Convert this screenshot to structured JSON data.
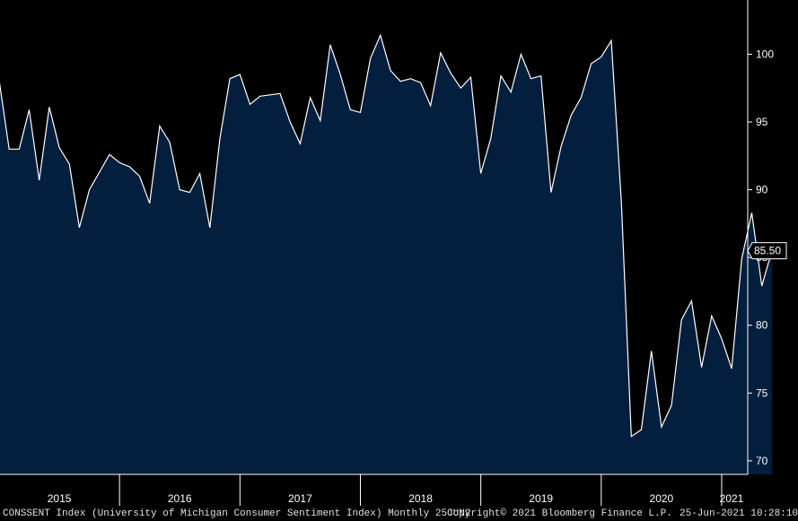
{
  "chart_data": {
    "type": "area",
    "title": "",
    "xlabel": "",
    "ylabel": "",
    "ylim": [
      69,
      104
    ],
    "yticks": [
      70,
      75,
      80,
      85,
      90,
      95,
      100
    ],
    "year_labels": [
      "2015",
      "2016",
      "2017",
      "2018",
      "2019",
      "2020",
      "2021"
    ],
    "last_value_label": "85.50",
    "grid": false,
    "colors": {
      "fill": "#041e3d",
      "line": "#ffffff",
      "background": "#000000",
      "axis": "#ffffff"
    },
    "series": [
      {
        "x": [
          "2015-01",
          "2015-02",
          "2015-03",
          "2015-04",
          "2015-05",
          "2015-06",
          "2015-07",
          "2015-08",
          "2015-09",
          "2015-10",
          "2015-11",
          "2015-12",
          "2016-01",
          "2016-02",
          "2016-03",
          "2016-04",
          "2016-05",
          "2016-06",
          "2016-07",
          "2016-08",
          "2016-09",
          "2016-10",
          "2016-11",
          "2016-12",
          "2017-01",
          "2017-02",
          "2017-03",
          "2017-04",
          "2017-05",
          "2017-06",
          "2017-07",
          "2017-08",
          "2017-09",
          "2017-10",
          "2017-11",
          "2017-12",
          "2018-01",
          "2018-02",
          "2018-03",
          "2018-04",
          "2018-05",
          "2018-06",
          "2018-07",
          "2018-08",
          "2018-09",
          "2018-10",
          "2018-11",
          "2018-12",
          "2019-01",
          "2019-02",
          "2019-03",
          "2019-04",
          "2019-05",
          "2019-06",
          "2019-07",
          "2019-08",
          "2019-09",
          "2019-10",
          "2019-11",
          "2019-12",
          "2020-01",
          "2020-02",
          "2020-03",
          "2020-04",
          "2020-05",
          "2020-06",
          "2020-07",
          "2020-08",
          "2020-09",
          "2020-10",
          "2020-11",
          "2020-12",
          "2021-01",
          "2021-02",
          "2021-03",
          "2021-04",
          "2021-05",
          "2021-06"
        ],
        "values": [
          98.1,
          93.0,
          93.0,
          95.9,
          90.7,
          96.1,
          93.1,
          91.9,
          87.2,
          90.0,
          91.3,
          92.6,
          92.0,
          91.7,
          91.0,
          89.0,
          94.7,
          93.5,
          90.0,
          89.8,
          91.2,
          87.2,
          93.8,
          98.2,
          98.5,
          96.3,
          96.9,
          97.0,
          97.1,
          95.0,
          93.4,
          96.8,
          95.1,
          100.7,
          98.5,
          95.9,
          95.7,
          99.7,
          101.4,
          98.8,
          98.0,
          98.2,
          97.9,
          96.2,
          100.1,
          98.6,
          97.5,
          98.3,
          91.2,
          93.8,
          98.4,
          97.2,
          100.0,
          98.2,
          98.4,
          89.8,
          93.2,
          95.5,
          96.8,
          99.3,
          99.8,
          101.0,
          89.1,
          71.8,
          72.3,
          78.1,
          72.5,
          74.1,
          80.4,
          81.8,
          76.9,
          80.7,
          79.0,
          76.8,
          84.9,
          88.3,
          82.9,
          85.5
        ]
      }
    ]
  },
  "footer": {
    "left": "CONSSENT Index (University of Michigan Consumer Sentiment Index)  Monthly 25JUN2",
    "center": "Copyright© 2021 Bloomberg Finance L.P.",
    "right": "25-Jun-2021 10:28:10"
  }
}
